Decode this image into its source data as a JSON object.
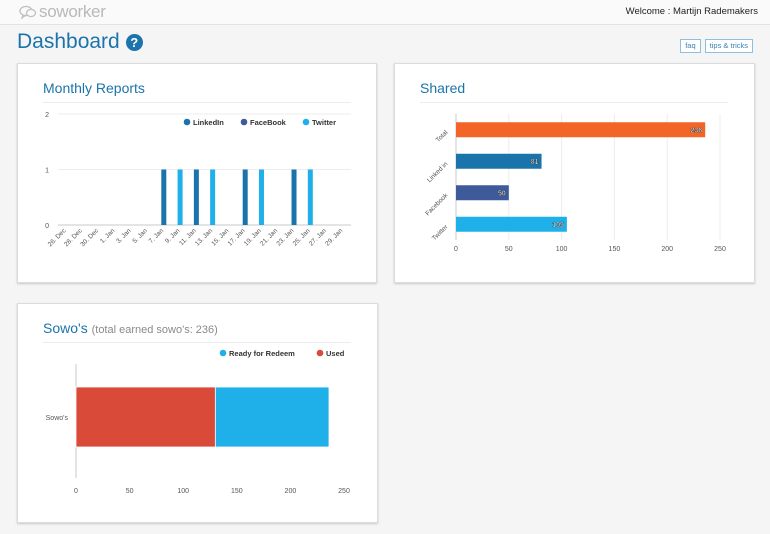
{
  "header": {
    "logo_text": "soworker",
    "welcome": "Welcome : Martijn Rademakers"
  },
  "page": {
    "title": "Dashboard",
    "help_icon": "?",
    "buttons": {
      "faq": "faq",
      "tips": "tips & tricks"
    }
  },
  "colors": {
    "brand": "#1b74ac",
    "linkedin": "#1a74ab",
    "facebook": "#3f5a9a",
    "twitter": "#1fb0ea",
    "total": "#f36427",
    "used": "#da4a38",
    "ready": "#1fb0ea"
  },
  "cards": {
    "monthly": {
      "title": "Monthly Reports"
    },
    "shared": {
      "title": "Shared"
    },
    "sowos": {
      "title": "Sowo's",
      "subtitle": "(total earned sowo's: 236)"
    }
  },
  "chart_data": [
    {
      "type": "bar",
      "title": "Monthly Reports",
      "categories": [
        "26. Dec",
        "28. Dec",
        "30. Dec",
        "1. Jan",
        "3. Jan",
        "5. Jan",
        "7. Jan",
        "9. Jan",
        "11. Jan",
        "13. Jan",
        "15. Jan",
        "17. Jan",
        "19. Jan",
        "21. Jan",
        "23. Jan",
        "25. Jan",
        "27. Jan",
        "29. Jan"
      ],
      "y_ticks": [
        0,
        1,
        2
      ],
      "ylim": [
        0,
        2
      ],
      "legend_position": "top-right",
      "series": [
        {
          "name": "LinkedIn",
          "color": "#1a74ab",
          "x": [
            "7. Jan",
            "11. Jan",
            "17. Jan",
            "23. Jan"
          ],
          "values": [
            1,
            1,
            1,
            1
          ]
        },
        {
          "name": "FaceBook",
          "color": "#3f5a9a",
          "x": [],
          "values": []
        },
        {
          "name": "Twitter",
          "color": "#1fb0ea",
          "x": [
            "9. Jan",
            "13. Jan",
            "19. Jan",
            "25. Jan"
          ],
          "values": [
            1,
            1,
            1,
            1
          ]
        }
      ],
      "grid": true
    },
    {
      "type": "bar",
      "orientation": "horizontal",
      "title": "Shared",
      "categories": [
        "Total",
        "Linked in",
        "Facebook",
        "Twitter"
      ],
      "values": [
        236,
        81,
        50,
        105
      ],
      "colors": [
        "#f36427",
        "#1a74ab",
        "#3f5a9a",
        "#1fb0ea"
      ],
      "data_labels": [
        "236",
        "81",
        "50",
        "105"
      ],
      "x_ticks": [
        0,
        50,
        100,
        150,
        200,
        250
      ],
      "xlim": [
        0,
        250
      ],
      "grid": true
    },
    {
      "type": "bar",
      "orientation": "horizontal",
      "stacked": true,
      "title": "Sowo's",
      "categories": [
        "Sowo's"
      ],
      "legend_position": "top-right",
      "series": [
        {
          "name": "Ready for Redeem",
          "color": "#1fb0ea",
          "values": [
            106
          ]
        },
        {
          "name": "Used",
          "color": "#da4a38",
          "values": [
            130
          ]
        }
      ],
      "x_ticks": [
        0,
        50,
        100,
        150,
        200,
        250
      ],
      "xlim": [
        0,
        250
      ]
    }
  ]
}
